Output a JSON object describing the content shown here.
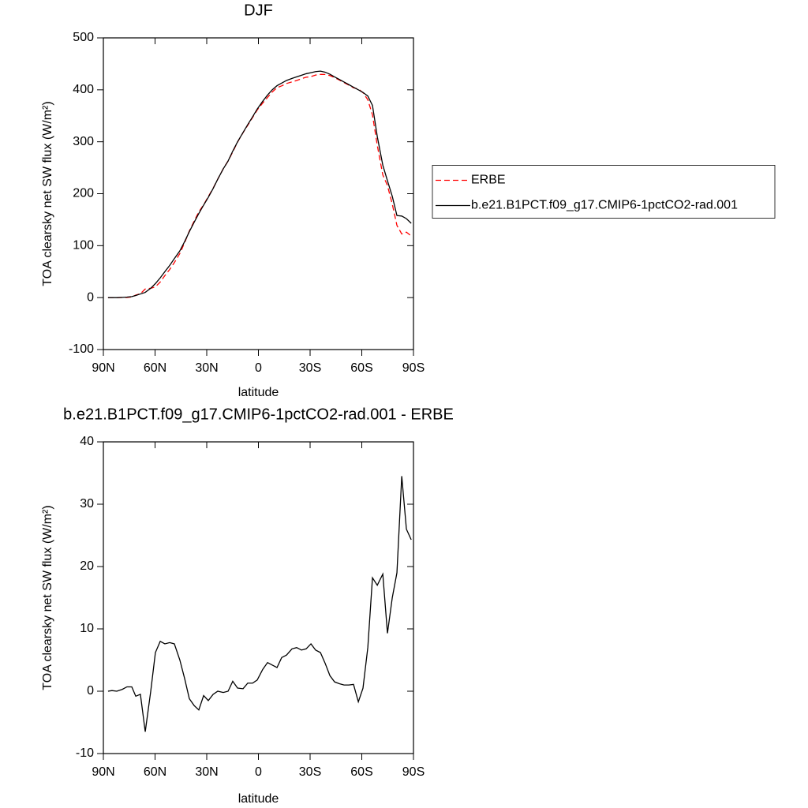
{
  "chart_data": [
    {
      "type": "line",
      "title": "DJF",
      "xlabel": "latitude",
      "ylabel": "TOA clearsky net SW flux (W/m²)",
      "xlim": [
        90,
        -90
      ],
      "xticks": [
        {
          "value": 90,
          "label": "90N"
        },
        {
          "value": 60,
          "label": "60N"
        },
        {
          "value": 30,
          "label": "30N"
        },
        0,
        {
          "value": -30,
          "label": "30S"
        },
        {
          "value": -60,
          "label": "60S"
        },
        {
          "value": -90,
          "label": "90S"
        }
      ],
      "ylim": [
        -100,
        500
      ],
      "yticks": [
        -100,
        0,
        100,
        200,
        300,
        400,
        500
      ],
      "legend": "right",
      "x": [
        87.3,
        85,
        82.2,
        79,
        76.3,
        73.5,
        71.2,
        68.5,
        65.7,
        62.5,
        59.8,
        57,
        54.3,
        51.5,
        48.8,
        45.6,
        42.8,
        40.1,
        37.3,
        34.6,
        31.8,
        29.1,
        26.3,
        23.6,
        20.4,
        17.6,
        14.9,
        12.1,
        8.9,
        6.2,
        3.4,
        0.7,
        -2.5,
        -5.3,
        -8,
        -10.8,
        -13.5,
        -16.3,
        -19.5,
        -22.2,
        -25,
        -27.7,
        -30.5,
        -33.2,
        -36,
        -38.7,
        -41.5,
        -44.2,
        -47,
        -49.7,
        -52.5,
        -55.2,
        -58,
        -60.7,
        -63.5,
        -66.2,
        -69,
        -72.2,
        -74.9,
        -77.7,
        -80.4,
        -83.2,
        -85.9,
        -88.7
      ],
      "series": [
        {
          "name": "ERBE",
          "color": "#ff0000",
          "line_style": "dashed",
          "values": [
            0,
            0,
            0,
            0.2,
            0.3,
            1.3,
            4.8,
            7.5,
            16.5,
            18,
            20.8,
            30,
            42.4,
            54.2,
            67.4,
            85,
            106,
            128.2,
            147.3,
            165,
            178.7,
            194.5,
            210.5,
            228,
            248.2,
            263,
            280.4,
            299.5,
            317.6,
            331.7,
            346.7,
            361.2,
            374.5,
            385.4,
            395.8,
            404.2,
            407.6,
            412.2,
            415.2,
            418,
            421.4,
            424.2,
            425.4,
            428.4,
            429.8,
            429.5,
            427.5,
            423.5,
            418.8,
            414,
            409,
            403.9,
            401.7,
            394.5,
            381,
            351.8,
            293,
            236.2,
            215.7,
            180,
            139,
            122.5,
            126,
            118.7
          ]
        },
        {
          "name": "b.e21.B1PCT.f09_g17.CMIP6-1pctCO2-rad.001",
          "color": "#000000",
          "line_style": "solid",
          "values": [
            0,
            0,
            0,
            0.5,
            1,
            2,
            4,
            7,
            10,
            18,
            27,
            38,
            50,
            62,
            75,
            90,
            108,
            127,
            145,
            162,
            178,
            193,
            210,
            228,
            248,
            263,
            282,
            300,
            318,
            333,
            348,
            363,
            378,
            390,
            400,
            408,
            413,
            418,
            422,
            425,
            428,
            431,
            433,
            435,
            436,
            434,
            430,
            425,
            420,
            415,
            410,
            405,
            400,
            395,
            388,
            370,
            310,
            255,
            225,
            195,
            158,
            157,
            152,
            143
          ]
        }
      ]
    },
    {
      "type": "line",
      "title": "b.e21.B1PCT.f09_g17.CMIP6-1pctCO2-rad.001 - ERBE",
      "xlabel": "latitude",
      "ylabel": "TOA clearsky net SW flux (W/m²)",
      "xlim": [
        90,
        -90
      ],
      "xticks": [
        {
          "value": 90,
          "label": "90N"
        },
        {
          "value": 60,
          "label": "60N"
        },
        {
          "value": 30,
          "label": "30N"
        },
        0,
        {
          "value": -30,
          "label": "30S"
        },
        {
          "value": -60,
          "label": "60S"
        },
        {
          "value": -90,
          "label": "90S"
        }
      ],
      "ylim": [
        -10,
        40
      ],
      "yticks": [
        -10,
        0,
        10,
        20,
        30,
        40
      ],
      "x": [
        87.3,
        85,
        82.2,
        79,
        76.3,
        73.5,
        71.2,
        68.5,
        65.7,
        62.5,
        59.8,
        57,
        54.3,
        51.5,
        48.8,
        45.6,
        42.8,
        40.1,
        37.3,
        34.6,
        31.8,
        29.1,
        26.3,
        23.6,
        20.4,
        17.6,
        14.9,
        12.1,
        8.9,
        6.2,
        3.4,
        0.7,
        -2.5,
        -5.3,
        -8,
        -10.8,
        -13.5,
        -16.3,
        -19.5,
        -22.2,
        -25,
        -27.7,
        -30.5,
        -33.2,
        -36,
        -38.7,
        -41.5,
        -44.2,
        -47,
        -49.7,
        -52.5,
        -55.2,
        -58,
        -60.7,
        -63.5,
        -66.2,
        -69,
        -72.2,
        -74.9,
        -77.7,
        -80.4,
        -83.2,
        -85.9,
        -88.7
      ],
      "series": [
        {
          "color": "#000000",
          "line_style": "solid",
          "values": [
            0,
            0.1,
            0,
            0.3,
            0.7,
            0.7,
            -0.8,
            -0.5,
            -6.5,
            0,
            6.2,
            8.0,
            7.6,
            7.8,
            7.6,
            5,
            2,
            -1.2,
            -2.3,
            -3,
            -0.7,
            -1.5,
            -0.5,
            0,
            -0.2,
            0,
            1.6,
            0.5,
            0.4,
            1.3,
            1.3,
            1.8,
            3.5,
            4.6,
            4.2,
            3.8,
            5.4,
            5.8,
            6.8,
            7.0,
            6.6,
            6.8,
            7.6,
            6.6,
            6.2,
            4.5,
            2.5,
            1.5,
            1.2,
            1.0,
            1.0,
            1.1,
            -1.7,
            0.5,
            7,
            18.2,
            17,
            18.8,
            9.3,
            15,
            19.0,
            34.5,
            26,
            24.3
          ]
        }
      ]
    }
  ]
}
